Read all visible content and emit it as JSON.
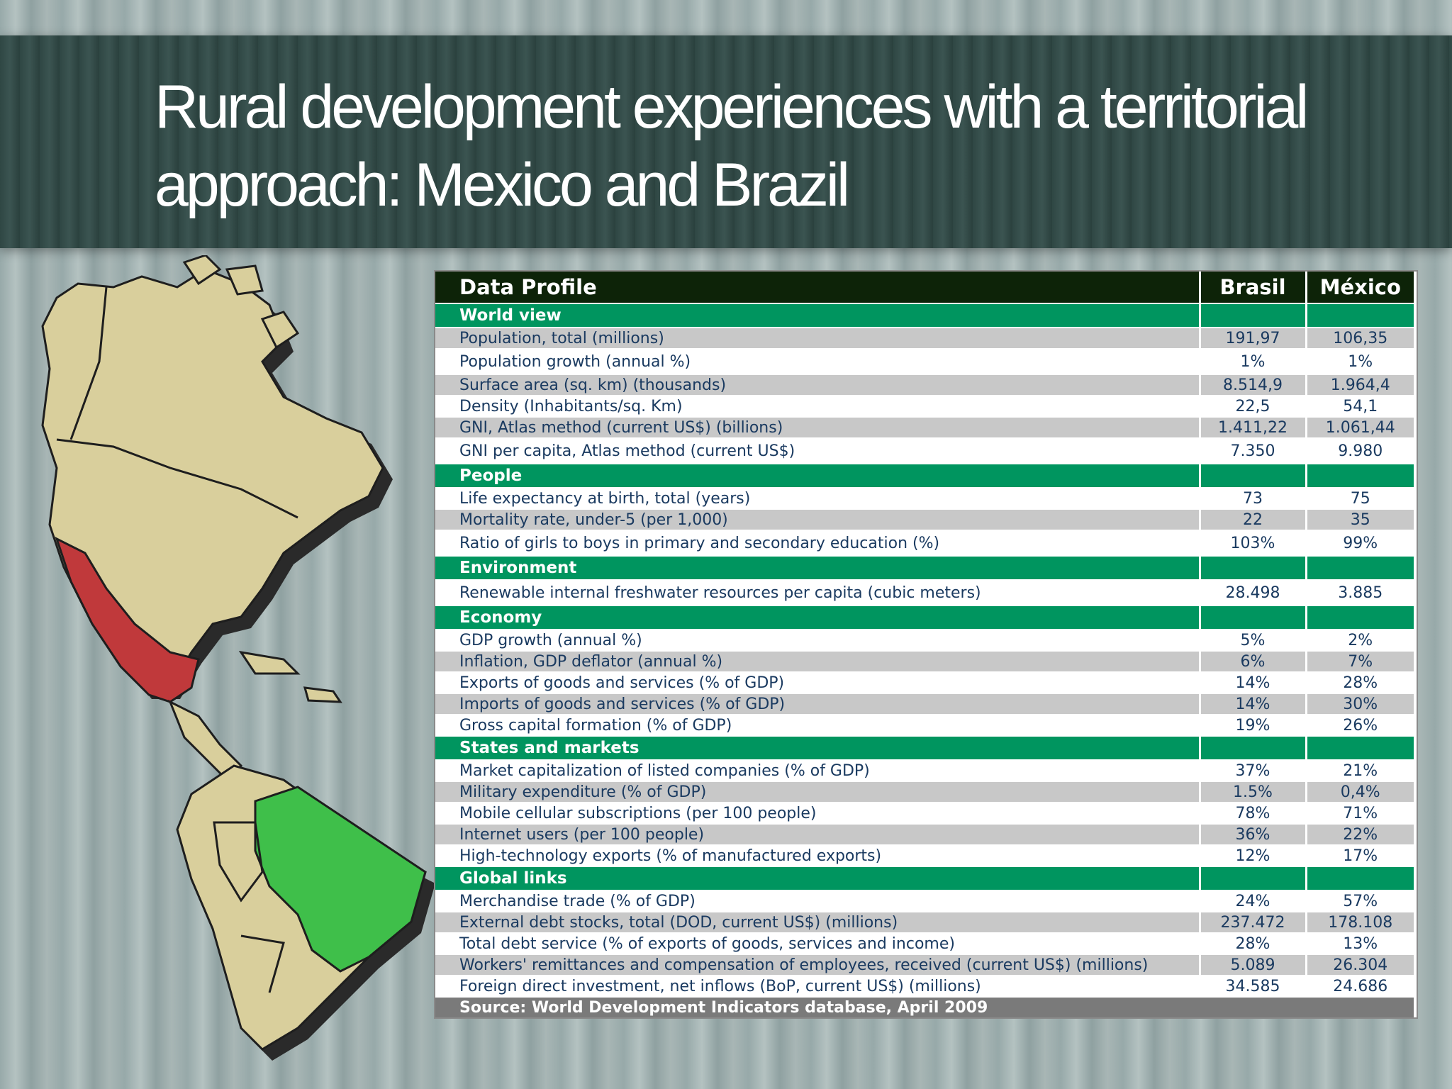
{
  "slide": {
    "title": "Rural development experiences with a territorial approach: Mexico and Brazil"
  },
  "colors": {
    "header": "#0d2308",
    "section": "#00955f",
    "row_alt": "#c8c8c8",
    "text": "#1a3a60",
    "mexico": "#c0393b",
    "brazil": "#3fbf4a"
  },
  "table": {
    "header": {
      "label": "Data Profile",
      "col1": "Brasil",
      "col2": "México"
    },
    "sections": [
      {
        "name": "World view",
        "rows": [
          {
            "label": "Population, total (millions)",
            "brasil": "191,97",
            "mexico": "106,35"
          },
          {
            "label": "Population growth (annual %)",
            "brasil": "1%",
            "mexico": "1%"
          },
          {
            "label": "Surface area (sq. km) (thousands)",
            "brasil": "8.514,9",
            "mexico": "1.964,4"
          },
          {
            "label": "Density (Inhabitants/sq. Km)",
            "brasil": "22,5",
            "mexico": "54,1"
          },
          {
            "label": "GNI, Atlas method (current US$) (billions)",
            "brasil": "1.411,22",
            "mexico": "1.061,44"
          },
          {
            "label": "GNI per capita, Atlas method (current US$)",
            "brasil": "7.350",
            "mexico": "9.980"
          }
        ]
      },
      {
        "name": "People",
        "rows": [
          {
            "label": "Life expectancy at birth, total (years)",
            "brasil": "73",
            "mexico": "75"
          },
          {
            "label": "Mortality rate, under-5 (per 1,000)",
            "brasil": "22",
            "mexico": "35"
          },
          {
            "label": "Ratio of girls to boys in primary and secondary education (%)",
            "brasil": "103%",
            "mexico": "99%"
          }
        ]
      },
      {
        "name": "Environment",
        "rows": [
          {
            "label": "Renewable internal freshwater resources per capita (cubic meters)",
            "brasil": "28.498",
            "mexico": "3.885"
          }
        ]
      },
      {
        "name": "Economy",
        "rows": [
          {
            "label": "GDP growth (annual %)",
            "brasil": "5%",
            "mexico": "2%"
          },
          {
            "label": "Inflation, GDP deflator (annual %)",
            "brasil": "6%",
            "mexico": "7%"
          },
          {
            "label": "Exports of goods and services (% of GDP)",
            "brasil": "14%",
            "mexico": "28%"
          },
          {
            "label": "Imports of goods and services (% of GDP)",
            "brasil": "14%",
            "mexico": "30%"
          },
          {
            "label": "Gross capital formation (% of GDP)",
            "brasil": "19%",
            "mexico": "26%"
          }
        ]
      },
      {
        "name": "States and markets",
        "rows": [
          {
            "label": "Market capitalization of listed companies (% of GDP)",
            "brasil": "37%",
            "mexico": "21%"
          },
          {
            "label": "Military expenditure (% of GDP)",
            "brasil": "1.5%",
            "mexico": "0,4%"
          },
          {
            "label": "Mobile cellular subscriptions (per 100 people)",
            "brasil": "78%",
            "mexico": "71%"
          },
          {
            "label": "Internet users (per 100 people)",
            "brasil": "36%",
            "mexico": "22%"
          },
          {
            "label": "High-technology exports (% of manufactured exports)",
            "brasil": "12%",
            "mexico": "17%"
          }
        ]
      },
      {
        "name": "Global links",
        "rows": [
          {
            "label": "Merchandise trade (% of GDP)",
            "brasil": "24%",
            "mexico": "57%"
          },
          {
            "label": "External debt stocks, total (DOD, current US$) (millions)",
            "brasil": "237.472",
            "mexico": "178.108"
          },
          {
            "label": "Total debt service (% of exports of goods, services and income)",
            "brasil": "28%",
            "mexico": "13%"
          },
          {
            "label": "Workers' remittances and compensation of employees, received (current US$) (millions)",
            "brasil": "5.089",
            "mexico": "26.304"
          },
          {
            "label": "Foreign direct investment, net inflows (BoP, current US$) (millions)",
            "brasil": "34.585",
            "mexico": "24.686"
          }
        ]
      }
    ],
    "source": "Source: World Development Indicators database, April 2009"
  }
}
